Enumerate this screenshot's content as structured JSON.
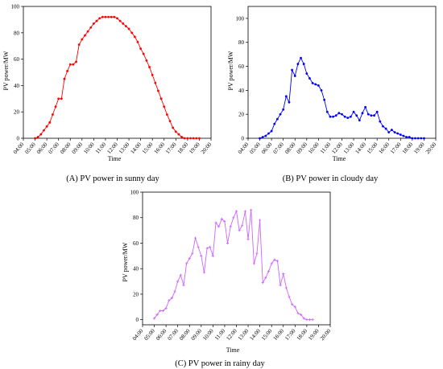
{
  "chart_data": [
    {
      "type": "line",
      "caption": "(A) PV power in sunny day",
      "xlabel": "Time",
      "ylabel": "PV power/MW",
      "xlim": [
        "04:00",
        "20:00"
      ],
      "ylim": [
        0,
        100
      ],
      "xticks": [
        "04:00",
        "05:00",
        "06:00",
        "07:00",
        "08:00",
        "09:00",
        "10:00",
        "11:00",
        "12:00",
        "13:00",
        "14:00",
        "15:00",
        "16:00",
        "17:00",
        "18:00",
        "19:00",
        "20:00"
      ],
      "yticks": [
        0,
        20,
        40,
        60,
        80,
        100
      ],
      "color": "#ff0000",
      "marker": "circle",
      "x": [
        "05:00",
        "05:15",
        "05:30",
        "05:45",
        "06:00",
        "06:15",
        "06:30",
        "06:45",
        "07:00",
        "07:15",
        "07:30",
        "07:45",
        "08:00",
        "08:15",
        "08:30",
        "08:45",
        "09:00",
        "09:15",
        "09:30",
        "09:45",
        "10:00",
        "10:15",
        "10:30",
        "10:45",
        "11:00",
        "11:15",
        "11:30",
        "11:45",
        "12:00",
        "12:15",
        "12:30",
        "12:45",
        "13:00",
        "13:15",
        "13:30",
        "13:45",
        "14:00",
        "14:15",
        "14:30",
        "14:45",
        "15:00",
        "15:15",
        "15:30",
        "15:45",
        "16:00",
        "16:15",
        "16:30",
        "16:45",
        "17:00",
        "17:15",
        "17:30",
        "17:45",
        "18:00",
        "18:15",
        "18:30",
        "18:45",
        "19:00"
      ],
      "y": [
        0,
        1,
        3,
        6,
        9,
        12,
        18,
        24,
        30,
        30,
        45,
        51,
        56,
        56,
        58,
        71,
        75,
        78,
        81,
        84,
        87,
        89,
        91,
        92,
        92,
        92,
        92,
        92,
        91,
        89,
        87,
        85,
        83,
        80,
        77,
        73,
        68,
        64,
        59,
        54,
        48,
        42,
        36,
        30,
        24,
        18,
        13,
        8,
        5,
        3,
        1,
        0,
        0,
        0,
        0,
        0,
        0
      ]
    },
    {
      "type": "line",
      "caption": "(B) PV power in cloudy day",
      "xlabel": "Time",
      "ylabel": "PV power/MW",
      "xlim": [
        "04:00",
        "20:00"
      ],
      "ylim": [
        0,
        110
      ],
      "xticks": [
        "04:00",
        "05:00",
        "06:00",
        "07:00",
        "08:00",
        "09:00",
        "10:00",
        "11:00",
        "12:00",
        "13:00",
        "14:00",
        "15:00",
        "16:00",
        "17:00",
        "18:00",
        "19:00",
        "20:00"
      ],
      "yticks": [
        0,
        20,
        40,
        60,
        80,
        100
      ],
      "color": "#0000ff",
      "marker": "circle",
      "x": [
        "05:00",
        "05:15",
        "05:30",
        "05:45",
        "06:00",
        "06:15",
        "06:30",
        "06:45",
        "07:00",
        "07:15",
        "07:30",
        "07:45",
        "08:00",
        "08:15",
        "08:30",
        "08:45",
        "09:00",
        "09:15",
        "09:30",
        "09:45",
        "10:00",
        "10:15",
        "10:30",
        "10:45",
        "11:00",
        "11:15",
        "11:30",
        "11:45",
        "12:00",
        "12:15",
        "12:30",
        "12:45",
        "13:00",
        "13:15",
        "13:30",
        "13:45",
        "14:00",
        "14:15",
        "14:30",
        "14:45",
        "15:00",
        "15:15",
        "15:30",
        "15:45",
        "16:00",
        "16:15",
        "16:30",
        "16:45",
        "17:00",
        "17:15",
        "17:30",
        "17:45",
        "18:00",
        "18:15",
        "18:30",
        "18:45",
        "19:00"
      ],
      "y": [
        0,
        1,
        2,
        4,
        6,
        12,
        16,
        20,
        24,
        35,
        30,
        57,
        52,
        62,
        67,
        62,
        54,
        50,
        46,
        45,
        44,
        40,
        32,
        22,
        18,
        18,
        19,
        21,
        20,
        18,
        17,
        18,
        22,
        19,
        15,
        21,
        26,
        20,
        19,
        19,
        22,
        14,
        10,
        8,
        5,
        7,
        5,
        4,
        3,
        2,
        1,
        1,
        0,
        0,
        0,
        0,
        0
      ]
    },
    {
      "type": "line",
      "caption": "(C) PV power in rainy day",
      "xlabel": "Time",
      "ylabel": "PV power/MW",
      "xlim": [
        "04:00",
        "20:00"
      ],
      "ylim": [
        -4,
        100
      ],
      "xticks": [
        "04:00",
        "05:00",
        "06:00",
        "07:00",
        "08:00",
        "09:00",
        "10:00",
        "11:00",
        "12:00",
        "13:00",
        "14:00",
        "15:00",
        "16:00",
        "17:00",
        "18:00",
        "19:00",
        "20:00"
      ],
      "yticks": [
        0,
        20,
        40,
        60,
        80,
        100
      ],
      "color": "#cc66ff",
      "marker": "cross",
      "x": [
        "05:00",
        "05:15",
        "05:30",
        "05:45",
        "06:00",
        "06:15",
        "06:30",
        "06:45",
        "07:00",
        "07:15",
        "07:30",
        "07:45",
        "08:00",
        "08:15",
        "08:30",
        "08:45",
        "09:00",
        "09:15",
        "09:30",
        "09:45",
        "10:00",
        "10:15",
        "10:30",
        "10:45",
        "11:00",
        "11:15",
        "11:30",
        "11:45",
        "12:00",
        "12:15",
        "12:30",
        "12:45",
        "13:00",
        "13:15",
        "13:30",
        "13:45",
        "14:00",
        "14:15",
        "14:30",
        "14:45",
        "15:00",
        "15:15",
        "15:30",
        "15:45",
        "16:00",
        "16:15",
        "16:30",
        "16:45",
        "17:00",
        "17:15",
        "17:30",
        "17:45",
        "18:00",
        "18:15",
        "18:30"
      ],
      "y": [
        1,
        4,
        7,
        7,
        9,
        15,
        17,
        22,
        30,
        35,
        27,
        44,
        48,
        52,
        64,
        57,
        50,
        37,
        56,
        57,
        50,
        76,
        73,
        79,
        77,
        60,
        73,
        80,
        85,
        70,
        74,
        85,
        63,
        86,
        44,
        52,
        78,
        29,
        33,
        38,
        44,
        47,
        46,
        27,
        36,
        25,
        18,
        12,
        10,
        5,
        4,
        1,
        0,
        0,
        0
      ]
    }
  ]
}
